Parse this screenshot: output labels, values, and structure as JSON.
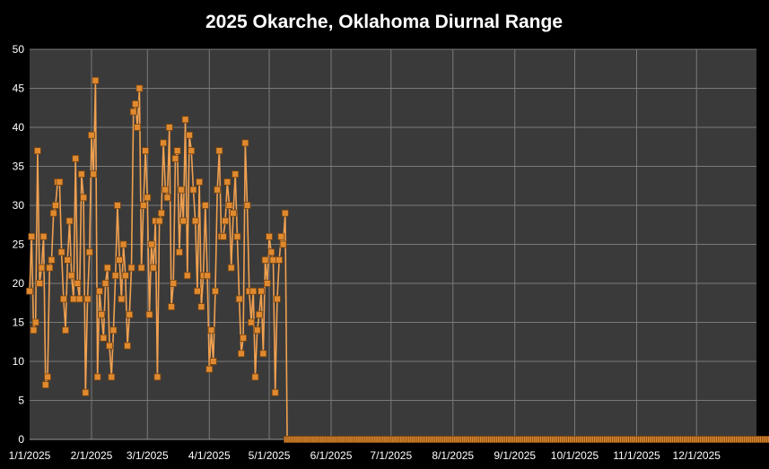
{
  "chart_data": {
    "type": "line",
    "title": "2025 Okarche, Oklahoma Diurnal Range",
    "xlabel": "",
    "ylabel": "",
    "ylim": [
      0,
      50
    ],
    "y_ticks": [
      "0",
      "5",
      "10",
      "15",
      "20",
      "25",
      "30",
      "35",
      "40",
      "45",
      "50"
    ],
    "x_range": [
      "2025-01-01",
      "2025-12-31"
    ],
    "x_ticks": [
      {
        "date": "2025-01-01",
        "label": "1/1/2025"
      },
      {
        "date": "2025-02-01",
        "label": "2/1/2025"
      },
      {
        "date": "2025-03-01",
        "label": "3/1/2025"
      },
      {
        "date": "2025-04-01",
        "label": "4/1/2025"
      },
      {
        "date": "2025-05-01",
        "label": "5/1/2025"
      },
      {
        "date": "2025-06-01",
        "label": "6/1/2025"
      },
      {
        "date": "2025-07-01",
        "label": "7/1/2025"
      },
      {
        "date": "2025-08-01",
        "label": "8/1/2025"
      },
      {
        "date": "2025-09-01",
        "label": "9/1/2025"
      },
      {
        "date": "2025-10-01",
        "label": "10/1/2025"
      },
      {
        "date": "2025-11-01",
        "label": "11/1/2025"
      },
      {
        "date": "2025-12-01",
        "label": "12/1/2025"
      }
    ],
    "grid": true,
    "legend": "none",
    "colors": {
      "background": "#000000",
      "plot_area": "#3a3a3a",
      "grid": "#7a7a7a",
      "line": "#f0a050",
      "marker": "#e08a30",
      "marker_edge": "#7a4510",
      "text": "#ffffff"
    },
    "series": [
      {
        "values": [
          19,
          26,
          14,
          15,
          37,
          20,
          22,
          26,
          7,
          8,
          22,
          23,
          29,
          30,
          33,
          33,
          24,
          18,
          14,
          23,
          28,
          21,
          18,
          36,
          20,
          18,
          34,
          31,
          6,
          18,
          24,
          39,
          34,
          46,
          8,
          19,
          16,
          13,
          20,
          22,
          12,
          8,
          14,
          21,
          30,
          23,
          18,
          25,
          21,
          12,
          16,
          22,
          42,
          43,
          40,
          45,
          22,
          30,
          37,
          31,
          16,
          25,
          22,
          28,
          8,
          28,
          29,
          38,
          32,
          31,
          40,
          17,
          20,
          36,
          37,
          24,
          32,
          28,
          41,
          21,
          39,
          37,
          32,
          28,
          19,
          33,
          17,
          21,
          30,
          21,
          9,
          14,
          10,
          19,
          32,
          37,
          26,
          26,
          28,
          33,
          30,
          22,
          29,
          34,
          26,
          18,
          11,
          13,
          38,
          30,
          19,
          15,
          19,
          8,
          14,
          16,
          19,
          11,
          23,
          20,
          26,
          24,
          23,
          6,
          18,
          23,
          26,
          25,
          29,
          0,
          0,
          0,
          0,
          0,
          0,
          0,
          0,
          0,
          0,
          0,
          0,
          0,
          0,
          0,
          0,
          0,
          0,
          0,
          0,
          0,
          0,
          0,
          0,
          0,
          0,
          0,
          0,
          0,
          0,
          0,
          0,
          0,
          0,
          0,
          0,
          0,
          0,
          0,
          0,
          0,
          0,
          0,
          0,
          0,
          0,
          0,
          0,
          0,
          0,
          0,
          0,
          0,
          0,
          0,
          0,
          0,
          0,
          0,
          0,
          0,
          0,
          0,
          0,
          0,
          0,
          0,
          0,
          0,
          0,
          0,
          0,
          0,
          0,
          0,
          0,
          0,
          0,
          0,
          0,
          0,
          0,
          0,
          0,
          0,
          0,
          0,
          0,
          0,
          0,
          0,
          0,
          0,
          0,
          0,
          0,
          0,
          0,
          0,
          0,
          0,
          0,
          0,
          0,
          0,
          0,
          0,
          0,
          0,
          0,
          0,
          0,
          0,
          0,
          0,
          0,
          0,
          0,
          0,
          0,
          0,
          0,
          0,
          0,
          0,
          0,
          0,
          0,
          0,
          0,
          0,
          0,
          0,
          0,
          0,
          0,
          0,
          0,
          0,
          0,
          0,
          0,
          0,
          0,
          0,
          0,
          0,
          0,
          0,
          0,
          0,
          0,
          0,
          0,
          0,
          0,
          0,
          0,
          0,
          0,
          0,
          0,
          0,
          0,
          0,
          0,
          0,
          0,
          0,
          0,
          0,
          0,
          0,
          0,
          0,
          0,
          0,
          0,
          0,
          0,
          0,
          0,
          0,
          0,
          0,
          0,
          0,
          0,
          0,
          0,
          0,
          0,
          0,
          0,
          0,
          0,
          0,
          0,
          0,
          0,
          0,
          0,
          0,
          0,
          0,
          0,
          0,
          0,
          0,
          0,
          0,
          0,
          0,
          0,
          0,
          0,
          0,
          0,
          0,
          0,
          0,
          0,
          0,
          0,
          0,
          0,
          0,
          0,
          0,
          0,
          0,
          0,
          0,
          0,
          0,
          0,
          0,
          0,
          0,
          0,
          0,
          0,
          0,
          0,
          0
        ]
      }
    ]
  }
}
